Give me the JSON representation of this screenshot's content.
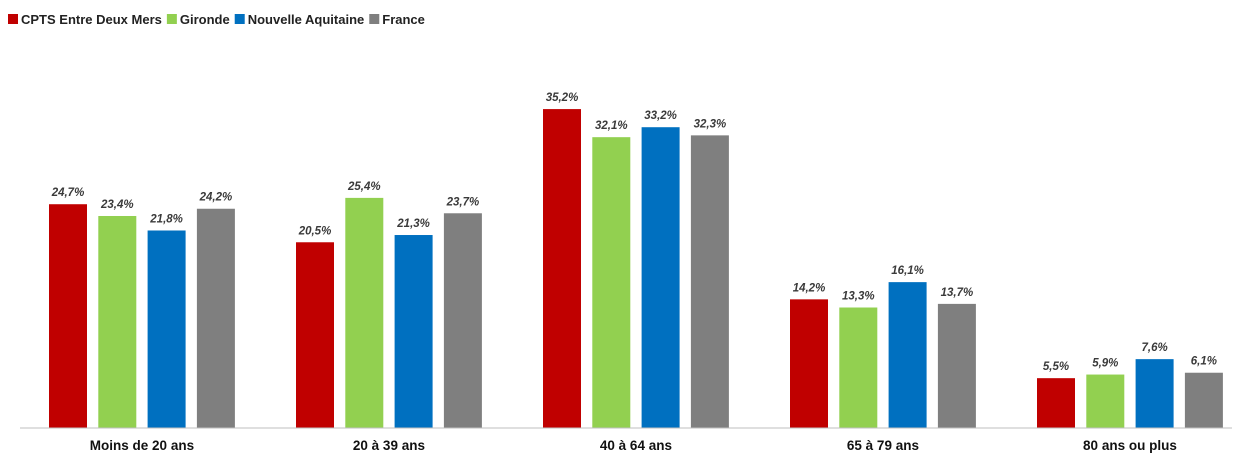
{
  "chart_data": {
    "type": "bar",
    "categories": [
      "Moins de 20 ans",
      "20 à 39 ans",
      "40 à 64 ans",
      "65 à 79 ans",
      "80 ans ou plus"
    ],
    "series": [
      {
        "name": "CPTS Entre Deux Mers",
        "color": "#C00000",
        "values": [
          24.7,
          20.5,
          35.2,
          14.2,
          5.5
        ],
        "labels": [
          "24,7%",
          "20,5%",
          "35,2%",
          "14,2%",
          "5,5%"
        ]
      },
      {
        "name": "Gironde",
        "color": "#92D050",
        "values": [
          23.4,
          25.4,
          32.1,
          13.3,
          5.9
        ],
        "labels": [
          "23,4%",
          "25,4%",
          "32,1%",
          "13,3%",
          "5,9%"
        ]
      },
      {
        "name": "Nouvelle Aquitaine",
        "color": "#0070C0",
        "values": [
          21.8,
          21.3,
          33.2,
          16.1,
          7.6
        ],
        "labels": [
          "21,8%",
          "21,3%",
          "33,2%",
          "16,1%",
          "7,6%"
        ]
      },
      {
        "name": "France",
        "color": "#7F7F7F",
        "values": [
          24.2,
          23.7,
          32.3,
          13.7,
          6.1
        ],
        "labels": [
          "24,2%",
          "23,7%",
          "32,3%",
          "13,7%",
          "6,1%"
        ]
      }
    ],
    "title": "",
    "xlabel": "",
    "ylabel": "",
    "ylim": [
      0,
      40
    ],
    "legend_position": "top-left",
    "grid": false,
    "y_axis_visible": false
  }
}
